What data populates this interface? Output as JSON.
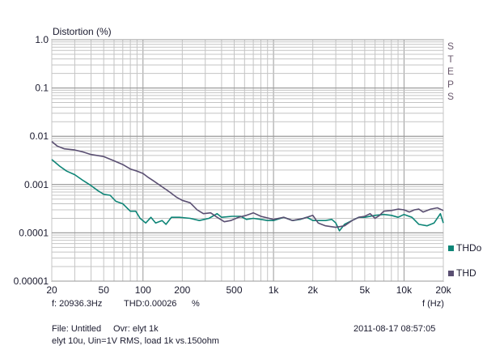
{
  "window_side_label": "STEPS",
  "chart_data": {
    "type": "line",
    "title": "Distortion (%)",
    "xlabel": "f (Hz)",
    "ylabel": "Distortion (%)",
    "xscale": "log",
    "yscale": "log",
    "xlim": [
      20,
      20000
    ],
    "ylim": [
      1e-05,
      1
    ],
    "x_ticks": [
      {
        "v": 20,
        "label": "20"
      },
      {
        "v": 50,
        "label": "50"
      },
      {
        "v": 100,
        "label": "100"
      },
      {
        "v": 200,
        "label": "200"
      },
      {
        "v": 500,
        "label": "500"
      },
      {
        "v": 1000,
        "label": "1k"
      },
      {
        "v": 2000,
        "label": "2k"
      },
      {
        "v": 5000,
        "label": "5k"
      },
      {
        "v": 10000,
        "label": "10k"
      },
      {
        "v": 20000,
        "label": "20k"
      }
    ],
    "y_ticks": [
      {
        "v": 1,
        "label": "1.0"
      },
      {
        "v": 0.1,
        "label": "0.1"
      },
      {
        "v": 0.01,
        "label": "0.01"
      },
      {
        "v": 0.001,
        "label": "0.001"
      },
      {
        "v": 0.0001,
        "label": "0.0001"
      },
      {
        "v": 1e-05,
        "label": "0.00001"
      }
    ],
    "grid": true,
    "legend_position": "bottom-right",
    "series": [
      {
        "name": "THDo",
        "color": "#0e8577",
        "points": [
          [
            20,
            0.0033
          ],
          [
            23,
            0.0024
          ],
          [
            26,
            0.0019
          ],
          [
            30,
            0.0016
          ],
          [
            35,
            0.0012
          ],
          [
            40,
            0.00095
          ],
          [
            45,
            0.00075
          ],
          [
            50,
            0.00063
          ],
          [
            56,
            0.0006
          ],
          [
            62,
            0.00045
          ],
          [
            70,
            0.0004
          ],
          [
            80,
            0.00028
          ],
          [
            88,
            0.00028
          ],
          [
            95,
            0.0002
          ],
          [
            105,
            0.00016
          ],
          [
            115,
            0.00021
          ],
          [
            125,
            0.00016
          ],
          [
            140,
            0.00018
          ],
          [
            150,
            0.00015
          ],
          [
            165,
            0.00021
          ],
          [
            190,
            0.00021
          ],
          [
            230,
            0.0002
          ],
          [
            270,
            0.00018
          ],
          [
            320,
            0.0002
          ],
          [
            370,
            0.00025
          ],
          [
            400,
            0.00021
          ],
          [
            480,
            0.00022
          ],
          [
            560,
            0.00022
          ],
          [
            620,
            0.00019
          ],
          [
            700,
            0.0002
          ],
          [
            800,
            0.00019
          ],
          [
            900,
            0.00018
          ],
          [
            1000,
            0.00018
          ],
          [
            1200,
            0.00021
          ],
          [
            1400,
            0.00018
          ],
          [
            1600,
            0.00019
          ],
          [
            1800,
            0.00021
          ],
          [
            2000,
            0.00018
          ],
          [
            2500,
            0.00018
          ],
          [
            2800,
            0.00019
          ],
          [
            3000,
            0.00016
          ],
          [
            3200,
            0.00011
          ],
          [
            3500,
            0.00015
          ],
          [
            4000,
            0.00018
          ],
          [
            4500,
            0.00021
          ],
          [
            5000,
            0.00021
          ],
          [
            6000,
            0.00023
          ],
          [
            7000,
            0.00024
          ],
          [
            8000,
            0.00023
          ],
          [
            9000,
            0.00021
          ],
          [
            10000,
            0.00024
          ],
          [
            11500,
            0.00021
          ],
          [
            13000,
            0.00015
          ],
          [
            15000,
            0.00014
          ],
          [
            17000,
            0.00016
          ],
          [
            19000,
            0.00025
          ],
          [
            20000,
            0.00016
          ]
        ]
      },
      {
        "name": "THD",
        "color": "#5a4f72",
        "points": [
          [
            20,
            0.0078
          ],
          [
            22,
            0.0063
          ],
          [
            25,
            0.0055
          ],
          [
            30,
            0.0052
          ],
          [
            35,
            0.0047
          ],
          [
            40,
            0.0042
          ],
          [
            50,
            0.0038
          ],
          [
            60,
            0.0031
          ],
          [
            70,
            0.0026
          ],
          [
            80,
            0.0021
          ],
          [
            90,
            0.0019
          ],
          [
            100,
            0.0017
          ],
          [
            110,
            0.0014
          ],
          [
            120,
            0.0012
          ],
          [
            140,
            0.0009
          ],
          [
            160,
            0.0007
          ],
          [
            180,
            0.00055
          ],
          [
            200,
            0.00047
          ],
          [
            230,
            0.00042
          ],
          [
            260,
            0.0003
          ],
          [
            290,
            0.00025
          ],
          [
            330,
            0.00026
          ],
          [
            370,
            0.00021
          ],
          [
            420,
            0.00017
          ],
          [
            470,
            0.00018
          ],
          [
            540,
            0.00021
          ],
          [
            620,
            0.00023
          ],
          [
            700,
            0.00026
          ],
          [
            800,
            0.00022
          ],
          [
            1000,
            0.00019
          ],
          [
            1200,
            0.00021
          ],
          [
            1400,
            0.00018
          ],
          [
            1700,
            0.0002
          ],
          [
            2000,
            0.00023
          ],
          [
            2200,
            0.00016
          ],
          [
            2500,
            0.00014
          ],
          [
            3000,
            0.00013
          ],
          [
            3500,
            0.00014
          ],
          [
            4000,
            0.00018
          ],
          [
            4500,
            0.00021
          ],
          [
            5000,
            0.00022
          ],
          [
            5500,
            0.00025
          ],
          [
            6000,
            0.0002
          ],
          [
            6500,
            0.00023
          ],
          [
            7000,
            0.00028
          ],
          [
            8000,
            0.00029
          ],
          [
            9000,
            0.00031
          ],
          [
            10000,
            0.0003
          ],
          [
            11000,
            0.00027
          ],
          [
            12000,
            0.0003
          ],
          [
            13000,
            0.00031
          ],
          [
            14000,
            0.00027
          ],
          [
            16000,
            0.00031
          ],
          [
            18000,
            0.00033
          ],
          [
            20000,
            0.00029
          ]
        ]
      }
    ]
  },
  "readout": {
    "freq": "f: 20936.3Hz",
    "thd": "THD:0.00026",
    "thd_unit": "%"
  },
  "footer": {
    "file": "File: Untitled",
    "ovr": "Ovr: elyt 1k",
    "desc": "elyt 10u, Uin=1V RMS, load 1k vs.150ohm",
    "timestamp": "2011-08-17 08:57:05"
  }
}
